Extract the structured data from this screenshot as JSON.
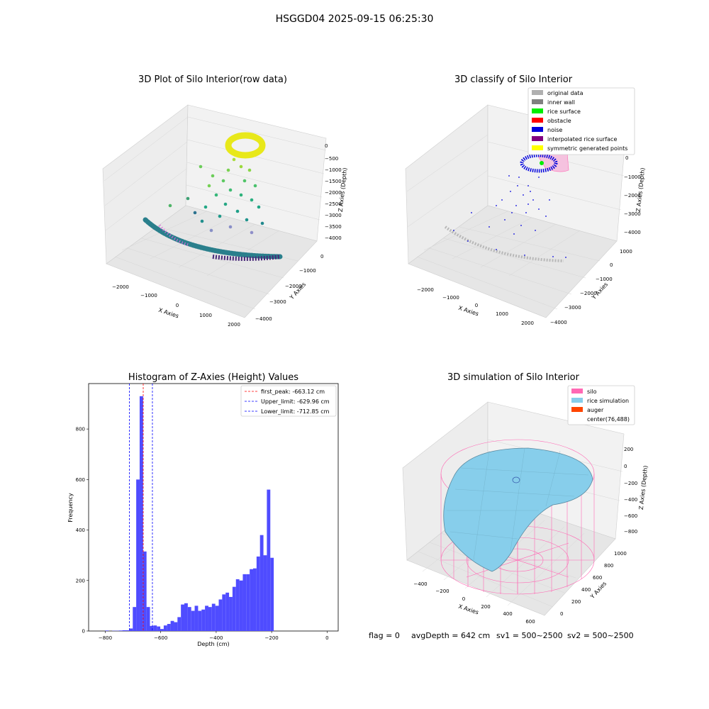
{
  "figure": {
    "suptitle": "HSGGD04 2025-09-15 06:25:30",
    "footer": {
      "flag": "flag = 0",
      "avgDepth": "avgDepth = 642 cm",
      "sv1": "sv1 = 500~2500",
      "sv2": "sv2 = 500~2500"
    }
  },
  "panels": {
    "raw": {
      "title": "3D Plot of Silo Interior(row data)",
      "xlabel": "X Axies",
      "ylabel": "Y Axies",
      "zlabel": "Z Axies (Depth)",
      "xticks": [
        "−2000",
        "−1000",
        "0",
        "1000",
        "2000"
      ],
      "yticks": [
        "0",
        "−1000",
        "−2000",
        "−3000",
        "−4000"
      ],
      "zticks": [
        "0",
        "−500",
        "−1000",
        "−1500",
        "−2000",
        "−2500",
        "−3000",
        "−3500",
        "−4000"
      ]
    },
    "classify": {
      "title": "3D classify of Silo Interior",
      "xlabel": "X Axies",
      "ylabel": "Y Axies",
      "zlabel": "Z Axies (Depth)",
      "xticks": [
        "−2000",
        "−1000",
        "0",
        "1000",
        "2000"
      ],
      "yticks": [
        "1000",
        "0",
        "−1000",
        "−2000",
        "−3000",
        "−4000"
      ],
      "zticks": [
        "0",
        "−1000",
        "−2000",
        "−3000",
        "−4000"
      ],
      "legend": [
        {
          "label": "original data",
          "color": "#b0b0b0"
        },
        {
          "label": "inner wall",
          "color": "#808080"
        },
        {
          "label": "rice surface",
          "color": "#00ee00"
        },
        {
          "label": "obstacle",
          "color": "#ff0000"
        },
        {
          "label": "noise",
          "color": "#0000dd"
        },
        {
          "label": "interpolated rice surface",
          "color": "#800080"
        },
        {
          "label": "symmetric generated points",
          "color": "#ffff00"
        }
      ]
    },
    "simulation": {
      "title": "3D simulation of Silo Interior",
      "xlabel": "X Axies",
      "ylabel": "Y Axies",
      "zlabel": "Z Axies (Depth)",
      "xticks": [
        "−400",
        "−200",
        "0",
        "200",
        "400",
        "600"
      ],
      "yticks": [
        "0",
        "200",
        "400",
        "600",
        "800",
        "1000"
      ],
      "zticks": [
        "200",
        "0",
        "−200",
        "−400",
        "−600",
        "−800"
      ],
      "legend": [
        {
          "label": "silo",
          "color": "#ff69b4"
        },
        {
          "label": "rice simulation",
          "color": "#87ceeb"
        },
        {
          "label": "auger",
          "color": "#ff4500"
        },
        {
          "label": "center(76,488)",
          "color": ""
        }
      ]
    }
  },
  "chart_data": {
    "type": "bar",
    "title": "Histogram of Z-Axies (Height) Values",
    "xlabel": "Depth (cm)",
    "ylabel": "Frequency",
    "xlim": [
      -860,
      40
    ],
    "ylim": [
      0,
      980
    ],
    "xticks": [
      -800,
      -600,
      -400,
      -200,
      0
    ],
    "yticks": [
      0,
      200,
      400,
      600,
      800
    ],
    "bin_width": 12.4,
    "bar_color": "#4f4cff",
    "bins": [
      {
        "x": -800,
        "v": 2
      },
      {
        "x": -787.6,
        "v": 0
      },
      {
        "x": -775.2,
        "v": 1
      },
      {
        "x": -762.8,
        "v": 1
      },
      {
        "x": -750.4,
        "v": 2
      },
      {
        "x": -738,
        "v": 3
      },
      {
        "x": -725.6,
        "v": 3
      },
      {
        "x": -713.2,
        "v": 10
      },
      {
        "x": -700.8,
        "v": 95
      },
      {
        "x": -688.4,
        "v": 600
      },
      {
        "x": -676,
        "v": 930
      },
      {
        "x": -663.6,
        "v": 315
      },
      {
        "x": -651.2,
        "v": 95
      },
      {
        "x": -638.8,
        "v": 20
      },
      {
        "x": -626.4,
        "v": 22
      },
      {
        "x": -614,
        "v": 18
      },
      {
        "x": -601.6,
        "v": 8
      },
      {
        "x": -589.2,
        "v": 22
      },
      {
        "x": -576.8,
        "v": 28
      },
      {
        "x": -564.4,
        "v": 40
      },
      {
        "x": -552,
        "v": 35
      },
      {
        "x": -539.6,
        "v": 55
      },
      {
        "x": -527.2,
        "v": 105
      },
      {
        "x": -514.8,
        "v": 110
      },
      {
        "x": -502.4,
        "v": 95
      },
      {
        "x": -490,
        "v": 80
      },
      {
        "x": -477.6,
        "v": 100
      },
      {
        "x": -465.2,
        "v": 80
      },
      {
        "x": -452.8,
        "v": 85
      },
      {
        "x": -440.4,
        "v": 100
      },
      {
        "x": -428,
        "v": 95
      },
      {
        "x": -415.6,
        "v": 108
      },
      {
        "x": -403.2,
        "v": 100
      },
      {
        "x": -390.8,
        "v": 125
      },
      {
        "x": -378.4,
        "v": 145
      },
      {
        "x": -366,
        "v": 152
      },
      {
        "x": -353.6,
        "v": 135
      },
      {
        "x": -341.2,
        "v": 175
      },
      {
        "x": -328.8,
        "v": 205
      },
      {
        "x": -316.4,
        "v": 200
      },
      {
        "x": -304,
        "v": 225
      },
      {
        "x": -291.6,
        "v": 225
      },
      {
        "x": -279.2,
        "v": 245
      },
      {
        "x": -266.8,
        "v": 248
      },
      {
        "x": -254.4,
        "v": 295
      },
      {
        "x": -242,
        "v": 380
      },
      {
        "x": -229.6,
        "v": 300
      },
      {
        "x": -217.2,
        "v": 560
      },
      {
        "x": -204.8,
        "v": 290
      }
    ],
    "bins_note": "",
    "lines": [
      {
        "label": "first_peak: -663.12 cm",
        "x": -663.12,
        "color": "#ff0000"
      },
      {
        "label": "Upper_limit: -629.96 cm",
        "x": -629.96,
        "color": "#0000ff"
      },
      {
        "label": "Lower_limit: -712.85 cm",
        "x": -712.85,
        "color": "#0000ff"
      }
    ]
  }
}
